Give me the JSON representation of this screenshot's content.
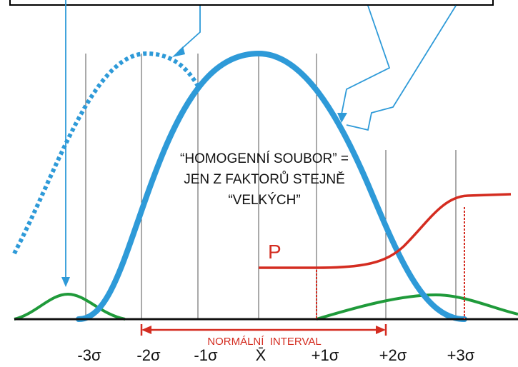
{
  "axis_labels": [
    "-3σ",
    "-2σ",
    "-1σ",
    "X̄",
    "+1σ",
    "+2σ",
    "+3σ"
  ],
  "caption": [
    "“HOMOGENNÍ SOUBOR” =",
    "JEN Z FAKTORŮ STEJNĚ",
    "“VELKÝCH”"
  ],
  "curve_label": "P",
  "interval_label": "NORMÁLNÍ  INTERVAL"
}
